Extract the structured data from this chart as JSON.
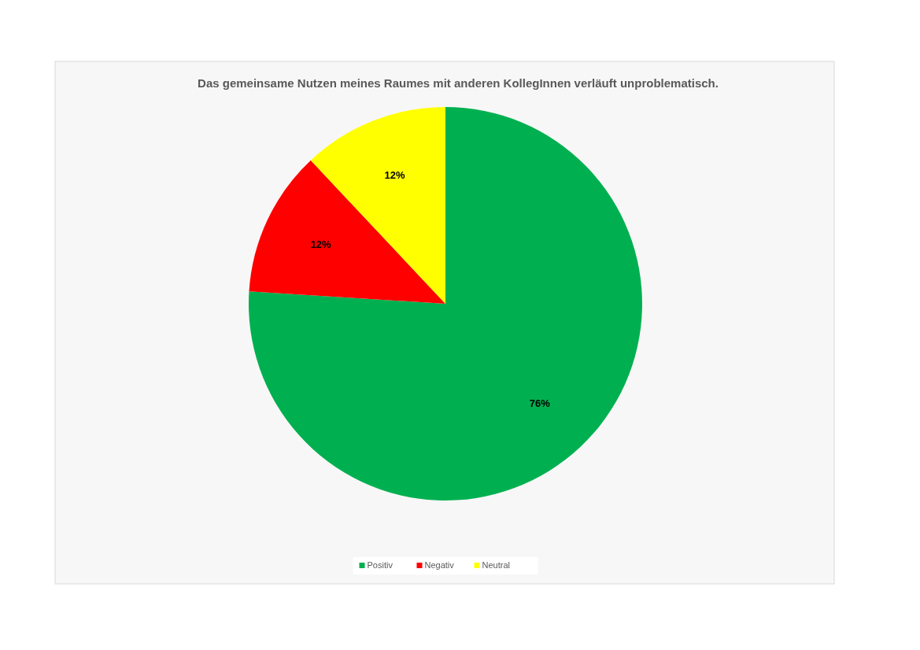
{
  "chart_data": {
    "type": "pie",
    "title": "Das gemeinsame Nutzen meines Raumes mit anderen KollegInnen verläuft unproblematisch.",
    "categories": [
      "Positiv",
      "Negativ",
      "Neutral"
    ],
    "values": [
      76,
      12,
      12
    ],
    "colors": [
      "#00b050",
      "#ff0000",
      "#ffff00"
    ],
    "value_labels": [
      "76%",
      "12%",
      "12%"
    ],
    "legend": "bottom"
  }
}
